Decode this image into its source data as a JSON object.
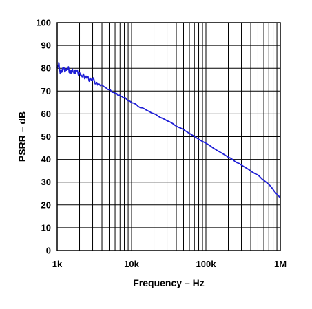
{
  "chart_data": {
    "type": "line",
    "title": "",
    "xlabel": "Frequency – Hz",
    "ylabel": "PSRR – dB",
    "x_scale": "log",
    "xlim": [
      1000,
      1000000
    ],
    "ylim": [
      0,
      100
    ],
    "grid": true,
    "x_ticks": [
      {
        "value": 1000,
        "label": "1k"
      },
      {
        "value": 10000,
        "label": "10k"
      },
      {
        "value": 100000,
        "label": "100k"
      },
      {
        "value": 1000000,
        "label": "1M"
      }
    ],
    "y_ticks": [
      {
        "value": 0,
        "label": "0"
      },
      {
        "value": 10,
        "label": "10"
      },
      {
        "value": 20,
        "label": "20"
      },
      {
        "value": 30,
        "label": "30"
      },
      {
        "value": 40,
        "label": "40"
      },
      {
        "value": 50,
        "label": "50"
      },
      {
        "value": 60,
        "label": "60"
      },
      {
        "value": 70,
        "label": "70"
      },
      {
        "value": 80,
        "label": "80"
      },
      {
        "value": 90,
        "label": "90"
      },
      {
        "value": 100,
        "label": "100"
      }
    ],
    "series": [
      {
        "color": "#1f1fd6",
        "points": [
          [
            1000,
            80
          ],
          [
            1050,
            82
          ],
          [
            1100,
            78
          ],
          [
            1200,
            80
          ],
          [
            1300,
            79
          ],
          [
            1400,
            80
          ],
          [
            1500,
            78
          ],
          [
            1600,
            79
          ],
          [
            1700,
            78
          ],
          [
            1800,
            79
          ],
          [
            2000,
            77.5
          ],
          [
            2200,
            76.5
          ],
          [
            2500,
            76
          ],
          [
            2800,
            75
          ],
          [
            3000,
            75
          ],
          [
            3500,
            73
          ],
          [
            4000,
            72.5
          ],
          [
            5000,
            70.5
          ],
          [
            6000,
            69
          ],
          [
            7000,
            68
          ],
          [
            8000,
            67
          ],
          [
            10000,
            65
          ],
          [
            15000,
            62
          ],
          [
            20000,
            60
          ],
          [
            30000,
            57
          ],
          [
            50000,
            53
          ],
          [
            100000,
            47
          ],
          [
            200000,
            41
          ],
          [
            300000,
            37.5
          ],
          [
            500000,
            33
          ],
          [
            700000,
            29
          ],
          [
            1000000,
            23
          ]
        ]
      }
    ]
  }
}
